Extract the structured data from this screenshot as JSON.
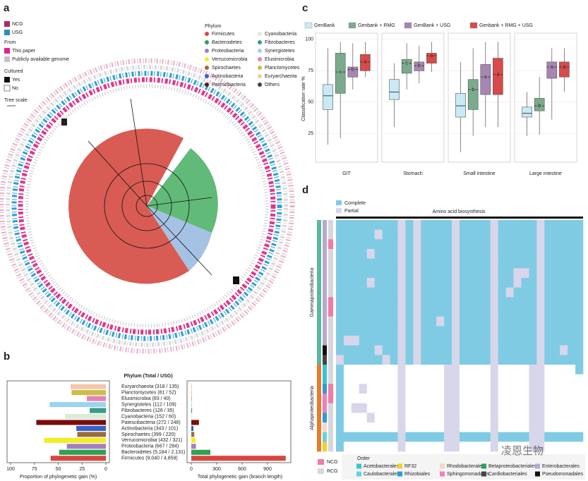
{
  "panel_labels": [
    "a",
    "b",
    "c",
    "d"
  ],
  "panel_a": {
    "legend_type": [
      "NCG",
      "USG"
    ],
    "from_title": "From",
    "from": [
      "This paper",
      "Publicly available genome"
    ],
    "cultured_title": "Cultured",
    "cultured": [
      "Yes",
      "No"
    ],
    "tree_scale": "Tree scale:",
    "phylum_title": "Phylum",
    "phyla": [
      "Firmicutes",
      "Bacteroidetes",
      "Proteobacteria",
      "Verrucomicrobia",
      "Spirochaetes",
      "Actinobacteria",
      "Patescibacteria",
      "Cyanobacteria",
      "Fibrobacteres",
      "Synergistetes",
      "Elusimicrobia",
      "Planctomycetes",
      "Euryarchaeota",
      "Others"
    ],
    "phyla_colors": [
      "#d9453f",
      "#2ea150",
      "#a47fc0",
      "#f2ee22",
      "#9b6b3c",
      "#3363c9",
      "#7a0c0c",
      "#d9ecd8",
      "#3a9a88",
      "#9cd3ee",
      "#e384b2",
      "#cdbd48",
      "#f6c6aa",
      "#444444"
    ]
  },
  "chart_data": [
    {
      "type": "bar",
      "horizontal": true,
      "title": "Phylum (Total / USG)",
      "xlabel": "Proportion of phylogenetic gain (%)",
      "categories": [
        "Euryarchaeota (318 / 135)",
        "Planctomycetes (81 / 52)",
        "Elusimicrobia (83 / 40)",
        "Synergistetes (112 / 109)",
        "Fibrobacteres (126 / 35)",
        "Cyanobacteria (152 / 60)",
        "Patescibacteria (272 / 248)",
        "Actinobacteria (343 / 101)",
        "Spirochaetes (399 / 220)",
        "Verrucomicrobia (432 / 321)",
        "Proteobacteria (667 / 284)",
        "Bacteroidetes (5,184 / 2,131)",
        "Firmicutes (9,040 / 4,859)"
      ],
      "colors": [
        "#f6c6aa",
        "#cdbd48",
        "#e384b2",
        "#9cd3ee",
        "#3a9a88",
        "#d9ecd8",
        "#7a0c0c",
        "#3363c9",
        "#9b6b3c",
        "#f2ee22",
        "#a47fc0",
        "#2ea150",
        "#d9453f"
      ],
      "values": [
        37,
        36,
        20,
        59,
        17,
        43,
        73,
        31,
        30,
        65,
        41,
        49,
        58
      ],
      "xlim": [
        100,
        0
      ],
      "xticks": [
        100,
        75,
        50,
        25,
        0
      ]
    },
    {
      "type": "bar",
      "horizontal": true,
      "xlabel": "Total phylogenetic gain (branch length)",
      "values": [
        8,
        6,
        7,
        6,
        9,
        10,
        90,
        25,
        35,
        50,
        55,
        225,
        1115
      ],
      "xlim": [
        0,
        1150
      ],
      "xticks": [
        0,
        300,
        600,
        900
      ]
    },
    {
      "type": "box",
      "ylabel": "Classification rate %",
      "facets": [
        "GIT",
        "Stomach",
        "Small intestine",
        "Large intestine"
      ],
      "ylim": [
        2,
        105
      ],
      "yticks": [
        25,
        50,
        75,
        100
      ],
      "grid": true,
      "series": [
        {
          "name": "GenBank",
          "color": "#c9e9f5",
          "stats": [
            [
              16,
              44,
              55,
              64,
              93
            ],
            [
              30,
              52,
              58,
              68,
              81
            ],
            [
              10,
              38,
              47,
              57,
              82
            ],
            [
              23,
              38,
              41,
              46,
              58
            ]
          ],
          "letters": [
            null,
            null,
            null,
            null
          ]
        },
        {
          "name": "Genbank + RMG",
          "color": "#7aab8c",
          "stats": [
            [
              21,
              57,
              74,
              89,
              98
            ],
            [
              60,
              73,
              81,
              84,
              97
            ],
            [
              23,
              44,
              60,
              68,
              93
            ],
            [
              24,
              43,
              47,
              53,
              70
            ]
          ],
          "letters": [
            "c",
            "c",
            "b",
            "b"
          ]
        },
        {
          "name": "GenBank + USG",
          "color": "#a886b2",
          "stats": [
            [
              60,
              70,
              76,
              78,
              97
            ],
            [
              65,
              75,
              79,
              82,
              95
            ],
            [
              30,
              56,
              70,
              80,
              98
            ],
            [
              36,
              69,
              78,
              82,
              93
            ]
          ],
          "letters": [
            "b",
            "b",
            "a",
            "a"
          ]
        },
        {
          "name": "Genbank + RMG + USG",
          "color": "#d94a4a",
          "stats": [
            [
              70,
              75,
              82,
              88,
              98
            ],
            [
              74,
              81,
              87,
              89,
              98
            ],
            [
              30,
              56,
              72,
              85,
              98
            ],
            [
              58,
              70,
              78,
              82,
              93
            ]
          ],
          "letters": [
            "a",
            "a",
            "a",
            "a"
          ]
        }
      ]
    },
    {
      "type": "heatmap",
      "title": "Amino acid biosynthesis",
      "legend": [
        "Complete",
        "Partial"
      ],
      "colors": [
        "#ffffff",
        "#d8d6ea",
        "#7fcbe4"
      ],
      "classes": [
        "Gammaproteobacteria",
        "Alphaproteobacteria"
      ],
      "class_colors": [
        "#5bb89c",
        "#ea7a2c"
      ],
      "order_title": "Order",
      "orders": [
        "Acetobacterales",
        "Caulobacterales",
        "RF32",
        "Rhizobiales",
        "Rhodobacterales",
        "Sphingomonadales",
        "Betaproteobacteriales",
        "Cardiobacteriales",
        "Enterobacterales",
        "Pseudomonadales"
      ],
      "order_colors": [
        "#37c4d6",
        "#62d3e2",
        "#f2d12a",
        "#2e9bd8",
        "#f5d6c6",
        "#f27fba",
        "#2f9e5e",
        "#444444",
        "#b8a9d2",
        "#111111"
      ],
      "sources": [
        "NCG",
        "RCG"
      ],
      "source_colors": [
        "#f07aa8",
        "#d6d6de"
      ],
      "row_class": [
        0,
        0,
        0,
        0,
        0,
        0,
        0,
        0,
        0,
        0,
        0,
        0,
        0,
        0,
        0,
        1,
        1,
        1,
        1,
        1,
        1,
        1,
        1,
        1
      ],
      "row_order": [
        8,
        8,
        8,
        8,
        8,
        8,
        8,
        8,
        8,
        8,
        8,
        8,
        8,
        9,
        7,
        0,
        0,
        3,
        5,
        5,
        3,
        4,
        1,
        2
      ],
      "row_source": [
        1,
        1,
        0,
        1,
        1,
        1,
        1,
        1,
        0,
        0,
        1,
        1,
        1,
        1,
        1,
        1,
        1,
        0,
        0,
        1,
        1,
        1,
        1,
        1
      ],
      "matrix": [
        [
          2,
          2,
          2,
          2,
          2,
          2,
          2,
          2,
          1,
          2,
          1,
          2,
          2,
          2,
          2,
          1,
          2,
          2,
          2,
          2,
          1,
          2,
          2,
          2,
          2,
          2,
          1,
          2,
          2,
          2,
          2,
          2
        ],
        [
          2,
          2,
          2,
          2,
          2,
          1,
          2,
          2,
          1,
          2,
          1,
          2,
          2,
          2,
          2,
          1,
          2,
          2,
          2,
          2,
          1,
          2,
          2,
          2,
          2,
          2,
          1,
          2,
          2,
          2,
          2,
          2
        ],
        [
          2,
          2,
          2,
          2,
          2,
          2,
          2,
          2,
          1,
          2,
          1,
          2,
          2,
          2,
          2,
          1,
          2,
          2,
          2,
          2,
          1,
          2,
          2,
          2,
          2,
          2,
          1,
          2,
          2,
          2,
          2,
          2
        ],
        [
          2,
          2,
          2,
          2,
          1,
          2,
          2,
          2,
          1,
          2,
          1,
          2,
          2,
          2,
          2,
          1,
          2,
          2,
          2,
          2,
          1,
          2,
          2,
          2,
          2,
          2,
          1,
          2,
          2,
          2,
          2,
          2
        ],
        [
          2,
          2,
          2,
          2,
          2,
          2,
          2,
          2,
          1,
          2,
          1,
          2,
          2,
          2,
          2,
          1,
          2,
          2,
          2,
          2,
          1,
          2,
          2,
          2,
          2,
          2,
          1,
          2,
          2,
          2,
          2,
          2
        ],
        [
          2,
          2,
          2,
          2,
          2,
          2,
          2,
          2,
          1,
          2,
          1,
          2,
          2,
          2,
          2,
          1,
          2,
          2,
          2,
          2,
          1,
          2,
          2,
          1,
          1,
          2,
          1,
          2,
          2,
          2,
          2,
          2
        ],
        [
          2,
          2,
          2,
          2,
          1,
          2,
          2,
          2,
          1,
          2,
          1,
          2,
          2,
          2,
          2,
          1,
          2,
          2,
          2,
          2,
          1,
          2,
          2,
          1,
          2,
          2,
          1,
          2,
          2,
          2,
          2,
          2
        ],
        [
          2,
          2,
          2,
          2,
          2,
          2,
          2,
          2,
          1,
          2,
          1,
          2,
          2,
          2,
          2,
          1,
          2,
          2,
          2,
          2,
          1,
          2,
          1,
          2,
          2,
          2,
          1,
          2,
          2,
          2,
          2,
          2
        ],
        [
          2,
          2,
          2,
          2,
          2,
          2,
          2,
          2,
          1,
          2,
          1,
          2,
          2,
          2,
          2,
          1,
          2,
          2,
          2,
          2,
          1,
          2,
          2,
          2,
          2,
          2,
          1,
          2,
          2,
          2,
          2,
          2
        ],
        [
          2,
          2,
          2,
          2,
          2,
          2,
          2,
          2,
          1,
          2,
          1,
          2,
          2,
          2,
          2,
          1,
          2,
          2,
          2,
          2,
          1,
          2,
          2,
          2,
          2,
          2,
          1,
          2,
          2,
          2,
          2,
          2
        ],
        [
          2,
          2,
          2,
          2,
          2,
          2,
          2,
          2,
          1,
          2,
          1,
          2,
          2,
          1,
          2,
          1,
          2,
          2,
          2,
          2,
          1,
          2,
          2,
          2,
          2,
          2,
          1,
          2,
          2,
          2,
          2,
          2
        ],
        [
          2,
          2,
          2,
          2,
          2,
          2,
          2,
          2,
          1,
          2,
          1,
          2,
          2,
          2,
          2,
          1,
          2,
          2,
          2,
          2,
          1,
          2,
          2,
          2,
          2,
          2,
          1,
          2,
          2,
          2,
          2,
          2
        ],
        [
          2,
          1,
          1,
          2,
          2,
          2,
          2,
          2,
          1,
          2,
          1,
          2,
          2,
          2,
          2,
          1,
          2,
          2,
          2,
          2,
          1,
          2,
          2,
          2,
          2,
          2,
          1,
          2,
          2,
          2,
          2,
          2
        ],
        [
          2,
          2,
          2,
          2,
          2,
          1,
          2,
          2,
          1,
          2,
          1,
          2,
          2,
          2,
          2,
          1,
          2,
          2,
          2,
          2,
          1,
          2,
          2,
          2,
          2,
          2,
          1,
          2,
          2,
          1,
          2,
          2
        ],
        [
          1,
          2,
          2,
          2,
          2,
          2,
          1,
          2,
          1,
          2,
          1,
          2,
          2,
          2,
          2,
          1,
          2,
          2,
          2,
          2,
          1,
          2,
          2,
          2,
          2,
          2,
          1,
          2,
          2,
          2,
          2,
          2
        ],
        [
          2,
          0,
          0,
          0,
          0,
          0,
          0,
          0,
          1,
          0,
          0,
          0,
          0,
          0,
          1,
          1,
          0,
          0,
          0,
          0,
          1,
          0,
          0,
          0,
          0,
          1,
          1,
          0,
          0,
          0,
          0,
          2
        ],
        [
          2,
          0,
          0,
          0,
          0,
          0,
          0,
          0,
          1,
          0,
          0,
          0,
          0,
          0,
          1,
          1,
          0,
          0,
          0,
          0,
          1,
          0,
          0,
          0,
          0,
          1,
          1,
          0,
          0,
          0,
          0,
          0
        ],
        [
          2,
          0,
          0,
          1,
          0,
          0,
          0,
          0,
          1,
          0,
          0,
          0,
          0,
          0,
          1,
          1,
          0,
          0,
          0,
          0,
          1,
          0,
          0,
          0,
          0,
          1,
          1,
          0,
          0,
          0,
          0,
          0
        ],
        [
          2,
          0,
          0,
          0,
          0,
          0,
          0,
          0,
          1,
          0,
          0,
          0,
          0,
          0,
          1,
          1,
          0,
          0,
          0,
          0,
          1,
          0,
          0,
          0,
          0,
          1,
          1,
          0,
          0,
          0,
          0,
          0
        ],
        [
          2,
          0,
          1,
          1,
          0,
          0,
          0,
          0,
          1,
          0,
          0,
          0,
          0,
          0,
          1,
          1,
          0,
          0,
          0,
          0,
          1,
          0,
          0,
          0,
          0,
          1,
          1,
          0,
          0,
          0,
          0,
          0
        ],
        [
          2,
          0,
          0,
          0,
          1,
          0,
          0,
          0,
          1,
          0,
          0,
          0,
          0,
          0,
          1,
          1,
          0,
          0,
          0,
          0,
          1,
          0,
          0,
          0,
          0,
          1,
          1,
          0,
          0,
          0,
          0,
          0
        ],
        [
          2,
          0,
          0,
          0,
          0,
          0,
          0,
          0,
          1,
          0,
          0,
          0,
          0,
          0,
          1,
          1,
          0,
          0,
          0,
          0,
          1,
          0,
          0,
          0,
          0,
          1,
          1,
          0,
          0,
          0,
          0,
          0
        ],
        [
          2,
          2,
          2,
          2,
          2,
          2,
          2,
          2,
          1,
          2,
          2,
          2,
          2,
          2,
          1,
          1,
          2,
          2,
          2,
          2,
          1,
          2,
          2,
          2,
          2,
          1,
          1,
          2,
          2,
          2,
          2,
          2
        ],
        [
          2,
          0,
          0,
          0,
          0,
          0,
          0,
          0,
          1,
          0,
          0,
          0,
          0,
          0,
          1,
          1,
          0,
          0,
          0,
          0,
          1,
          0,
          0,
          0,
          0,
          1,
          1,
          0,
          0,
          0,
          0,
          0
        ]
      ]
    }
  ],
  "watermark": "凌恩生物"
}
